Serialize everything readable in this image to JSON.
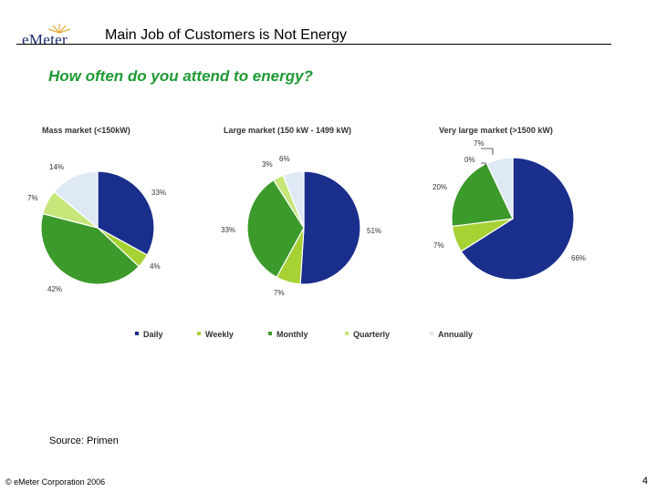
{
  "header": {
    "logo_text": "eMeter",
    "title": "Main Job of Customers is Not Energy"
  },
  "question": "How often do you attend to energy?",
  "legend": {
    "items": [
      {
        "label": "Daily",
        "color": "#1a2e8c"
      },
      {
        "label": "Weekly",
        "color": "#a6d234"
      },
      {
        "label": "Monthly",
        "color": "#3c9a2a"
      },
      {
        "label": "Quarterly",
        "color": "#c6e67a"
      },
      {
        "label": "Annually",
        "color": "#dfe9f5"
      }
    ]
  },
  "chart_data": [
    {
      "type": "pie",
      "title": "Mass market (<150kW)",
      "categories": [
        "Daily",
        "Weekly",
        "Monthly",
        "Quarterly",
        "Annually"
      ],
      "values": [
        33,
        4,
        42,
        7,
        14
      ],
      "labels": [
        "33%",
        "4%",
        "42%",
        "7%",
        "14%"
      ]
    },
    {
      "type": "pie",
      "title": "Large market (150 kW - 1499 kW)",
      "categories": [
        "Daily",
        "Weekly",
        "Monthly",
        "Quarterly",
        "Annually"
      ],
      "values": [
        51,
        7,
        33,
        3,
        6
      ],
      "labels": [
        "51%",
        "7%",
        "33%",
        "3%",
        "6%"
      ]
    },
    {
      "type": "pie",
      "title": "Very large market (>1500 kW)",
      "categories": [
        "Daily",
        "Weekly",
        "Monthly",
        "Quarterly",
        "Annually"
      ],
      "values": [
        66,
        7,
        20,
        0,
        7
      ],
      "labels": [
        "66%",
        "7%",
        "20%",
        "0%",
        "7%"
      ]
    }
  ],
  "source": "Source: Primen",
  "footer": "© eMeter Corporation 2006",
  "page_number": "4"
}
